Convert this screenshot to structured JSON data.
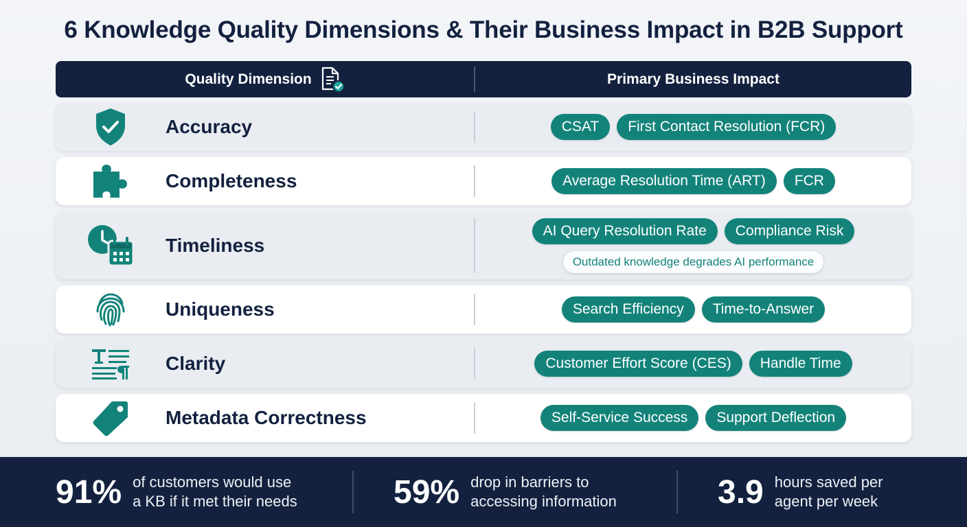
{
  "title": "6 Knowledge Quality Dimensions & Their Business Impact in B2B Support",
  "header": {
    "left": "Quality Dimension",
    "right": "Primary Business Impact"
  },
  "rows": [
    {
      "label": "Accuracy",
      "icon": "shield-check-icon",
      "pills": [
        "CSAT",
        "First Contact Resolution (FCR)"
      ]
    },
    {
      "label": "Completeness",
      "icon": "puzzle-piece-icon",
      "pills": [
        "Average Resolution Time (ART)",
        "FCR"
      ]
    },
    {
      "label": "Timeliness",
      "icon": "clock-calendar-icon",
      "pills": [
        "AI Query Resolution Rate",
        "Compliance Risk"
      ],
      "note": "Outdated knowledge degrades AI performance"
    },
    {
      "label": "Uniqueness",
      "icon": "fingerprint-icon",
      "pills": [
        "Search Efficiency",
        "Time-to-Answer"
      ]
    },
    {
      "label": "Clarity",
      "icon": "text-format-icon",
      "pills": [
        "Customer Effort Score (CES)",
        "Handle Time"
      ]
    },
    {
      "label": "Metadata Correctness",
      "icon": "tag-icon",
      "pills": [
        "Self-Service Success",
        "Support Deflection"
      ]
    }
  ],
  "stats": [
    {
      "num": "91%",
      "line1": "of customers would use",
      "line2": "a KB if it met their needs"
    },
    {
      "num": "59%",
      "line1": "drop in barriers to",
      "line2": "accessing information"
    },
    {
      "num": "3.9",
      "line1": "hours saved per",
      "line2": "agent per week"
    }
  ],
  "colors": {
    "navy": "#13213f",
    "teal": "#13837a",
    "row_shade": "#e9ecf1"
  }
}
